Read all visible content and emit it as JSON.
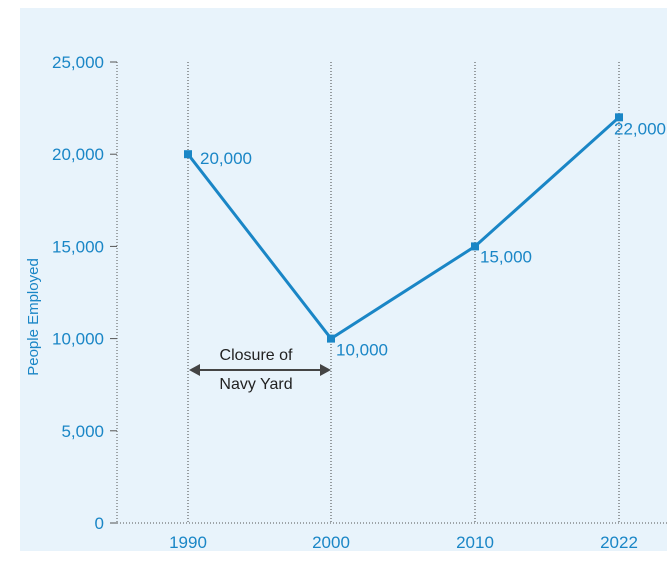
{
  "chart_data": {
    "type": "line",
    "title": "",
    "xlabel": "",
    "ylabel": "People Employed",
    "categories": [
      "1990",
      "2000",
      "2010",
      "2022"
    ],
    "series": [
      {
        "values": [
          20000,
          10000,
          15000,
          22000
        ]
      }
    ],
    "data_labels": [
      "20,000",
      "10,000",
      "15,000",
      "22,000"
    ],
    "y_ticks": [
      "0",
      "5,000",
      "10,000",
      "15,000",
      "20,000",
      "25,000"
    ],
    "y_tick_values": [
      0,
      5000,
      10000,
      15000,
      20000,
      25000
    ],
    "ylim": [
      0,
      25000
    ],
    "grid": "vertical dotted lines at each category",
    "annotation": {
      "lines": [
        "Closure of",
        "Navy Yard"
      ],
      "from": "1990",
      "to": "2000"
    }
  },
  "colors": {
    "background": "#e8f3fb",
    "series": "#1a86c6",
    "text": "#1a86c6",
    "axis": "#555555",
    "annotation_arrow": "#444444"
  }
}
